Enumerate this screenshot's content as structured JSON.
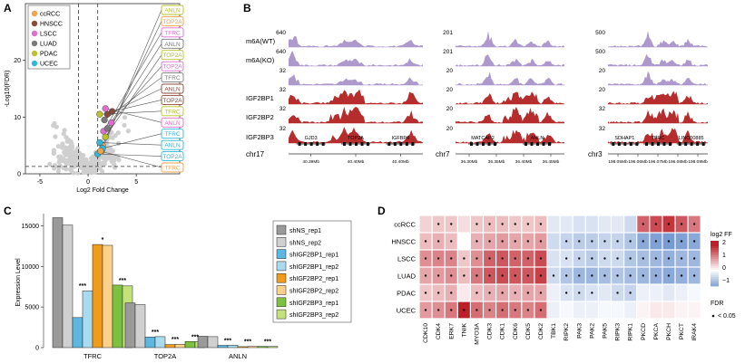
{
  "chart_data": [
    {
      "panel": "A",
      "type": "scatter",
      "title": "",
      "xlabel": "Log2 Fold Change",
      "ylabel": "-Log10(FDR)",
      "xlim": [
        -6.5,
        9.5
      ],
      "ylim": [
        0,
        30
      ],
      "xticks": [
        -5,
        0,
        5
      ],
      "yticks": [
        0,
        10,
        20
      ],
      "vlines": [
        -1,
        1
      ],
      "hline": 1.3,
      "legend": {
        "items": [
          {
            "name": "ccRCC",
            "color": "#f0a24d"
          },
          {
            "name": "HNSCC",
            "color": "#8b4a3a"
          },
          {
            "name": "LSCC",
            "color": "#dd6ecf"
          },
          {
            "name": "LUAD",
            "color": "#7a7a7a"
          },
          {
            "name": "PDAC",
            "color": "#b7c22e"
          },
          {
            "name": "UCEC",
            "color": "#32b7d9"
          }
        ]
      },
      "highlighted": [
        {
          "label": "ANLN",
          "cohort": "PDAC",
          "x": 1.4,
          "y": 4.0
        },
        {
          "label": "TOP2A",
          "cohort": "ccRCC",
          "x": 1.5,
          "y": 5.0
        },
        {
          "label": "TFRC",
          "cohort": "LSCC",
          "x": 1.6,
          "y": 7.5
        },
        {
          "label": "ANLN",
          "cohort": "LUAD",
          "x": 2.0,
          "y": 8.0
        },
        {
          "label": "TOP2A",
          "cohort": "PDAC",
          "x": 1.8,
          "y": 6.5
        },
        {
          "label": "TOP2A",
          "cohort": "LSCC",
          "x": 2.4,
          "y": 9.0
        },
        {
          "label": "TFRC",
          "cohort": "LUAD",
          "x": 1.7,
          "y": 9.5
        },
        {
          "label": "ANLN",
          "cohort": "HNSCC",
          "x": 2.0,
          "y": 10.5
        },
        {
          "label": "TOP2A",
          "cohort": "HNSCC",
          "x": 2.5,
          "y": 11.0
        },
        {
          "label": "TFRC",
          "cohort": "PDAC",
          "x": 1.2,
          "y": 10.5
        },
        {
          "label": "ANLN",
          "cohort": "LSCC",
          "x": 1.8,
          "y": 11.5
        },
        {
          "label": "TFRC",
          "cohort": "UCEC",
          "x": 1.5,
          "y": 4.5
        },
        {
          "label": "ANLN",
          "cohort": "UCEC",
          "x": 1.2,
          "y": 5.5
        },
        {
          "label": "TOP2A",
          "cohort": "UCEC",
          "x": 1.0,
          "y": 3.5
        },
        {
          "label": "TFRC",
          "cohort": "ccRCC",
          "x": 1.3,
          "y": 4.0
        }
      ]
    },
    {
      "panel": "B",
      "type": "area",
      "title": "",
      "tracks": [
        {
          "label": "m6A(WT)",
          "color": "#a993c9",
          "scales": [
            "640",
            "201",
            "500"
          ]
        },
        {
          "label": "m6A(KO)",
          "color": "#a993c9",
          "scales": [
            "640",
            "201",
            "500"
          ]
        },
        {
          "label": "",
          "color": "#a993c9",
          "scales": [
            "32",
            "20",
            "20"
          ]
        },
        {
          "label": "IGF2BP1",
          "color": "#b22222",
          "scales": [
            "32",
            "20",
            "20"
          ]
        },
        {
          "label": "IGF2BP2",
          "color": "#b22222",
          "scales": [
            "32",
            "20",
            "32"
          ]
        },
        {
          "label": "IGF2BP3",
          "color": "#b22222",
          "scales": [
            "32",
            "20",
            "32"
          ]
        }
      ],
      "loci": [
        {
          "chrom": "chr17",
          "genes": [
            "GJD3",
            "TOP2A",
            "IGFBP4"
          ],
          "ticks": [
            "40.39Mb",
            "40.40Mb",
            "40.40Mb"
          ]
        },
        {
          "chrom": "chr7",
          "genes": [
            "MATCAP2",
            "ANLN"
          ],
          "ticks": [
            "36.30Mb",
            "36.35Mb",
            "36.40Mb",
            "36.45Mb"
          ]
        },
        {
          "chrom": "chr3",
          "genes": [
            "SDHAP1",
            "TFRC",
            "LINC00885"
          ],
          "ticks": [
            "196.05Mb",
            "196.06Mb",
            "196.07Mb",
            "196.08Mb",
            "196.09Mb"
          ]
        }
      ]
    },
    {
      "panel": "C",
      "type": "bar",
      "title": "",
      "xlabel": "",
      "ylabel": "Expression Level",
      "ylim": [
        0,
        16500
      ],
      "yticks": [
        0,
        5000,
        10000,
        15000
      ],
      "categories": [
        "TFRC",
        "TOP2A",
        "ANLN"
      ],
      "series": [
        {
          "name": "shNS_rep1",
          "color": "#9a9a9a",
          "values": [
            16000,
            5500,
            1400
          ]
        },
        {
          "name": "shNS_rep2",
          "color": "#d0d0d0",
          "values": [
            15100,
            5300,
            1350
          ]
        },
        {
          "name": "shIGF2BP1_rep1",
          "color": "#5cb8e0",
          "values": [
            3700,
            1300,
            280
          ]
        },
        {
          "name": "shIGF2BP1_rep2",
          "color": "#aadaf0",
          "values": [
            7000,
            1350,
            300
          ]
        },
        {
          "name": "shIGF2BP2_rep1",
          "color": "#f09b1b",
          "values": [
            12700,
            380,
            120
          ]
        },
        {
          "name": "shIGF2BP2_rep2",
          "color": "#fad08a",
          "values": [
            12600,
            420,
            140
          ]
        },
        {
          "name": "shIGF2BP3_rep1",
          "color": "#7cc23e",
          "values": [
            7700,
            750,
            150
          ]
        },
        {
          "name": "shIGF2BP3_rep2",
          "color": "#c3e27a",
          "values": [
            7600,
            720,
            140
          ]
        }
      ],
      "significance": [
        {
          "category": "TFRC",
          "group": "shIGF2BP1",
          "label": "***"
        },
        {
          "category": "TFRC",
          "group": "shIGF2BP2",
          "label": "*"
        },
        {
          "category": "TFRC",
          "group": "shIGF2BP3",
          "label": "***"
        },
        {
          "category": "TOP2A",
          "group": "shIGF2BP1",
          "label": "***"
        },
        {
          "category": "TOP2A",
          "group": "shIGF2BP2",
          "label": "***"
        },
        {
          "category": "TOP2A",
          "group": "shIGF2BP3",
          "label": "***"
        },
        {
          "category": "ANLN",
          "group": "shIGF2BP1",
          "label": "***"
        },
        {
          "category": "ANLN",
          "group": "shIGF2BP2",
          "label": "***"
        },
        {
          "category": "ANLN",
          "group": "shIGF2BP3",
          "label": "***"
        }
      ]
    },
    {
      "panel": "D",
      "type": "heatmap",
      "title": "",
      "rows": [
        "ccRCC",
        "HNSCC",
        "LSCC",
        "LUAD",
        "PDAC",
        "UCEC"
      ],
      "columns": [
        "CDK10",
        "CDK4",
        "ERK7",
        "TNIK",
        "MYO3A",
        "CDK3",
        "CDK1",
        "CDK6",
        "CDK5",
        "CDK2",
        "TBK1",
        "RIPK2",
        "PAK3",
        "PAK2",
        "PAK5",
        "RIPK3",
        "RIPK1",
        "PKCD",
        "PKCA",
        "PKCH",
        "PKCT",
        "IRAK4"
      ],
      "values": [
        [
          0.4,
          0.5,
          0.5,
          0.3,
          0.5,
          0.6,
          0.6,
          0.5,
          0.5,
          0.6,
          -0.3,
          -0.3,
          -0.4,
          -0.4,
          -0.3,
          -0.3,
          -0.5,
          1.4,
          1.6,
          1.8,
          1.5,
          1.2
        ],
        [
          0.6,
          0.7,
          0.6,
          0.0,
          0.7,
          0.8,
          0.9,
          0.8,
          0.8,
          0.9,
          -0.5,
          -0.6,
          -0.7,
          -0.7,
          -0.6,
          -0.6,
          -0.8,
          -1.2,
          -1.3,
          -1.4,
          -1.3,
          -1.2
        ],
        [
          1.0,
          1.1,
          1.1,
          0.5,
          1.0,
          1.4,
          1.5,
          1.4,
          1.4,
          1.6,
          -0.4,
          -0.4,
          -0.6,
          -0.7,
          -0.5,
          -0.5,
          -0.8,
          -0.9,
          -1.0,
          -1.1,
          -1.0,
          -1.0
        ],
        [
          0.8,
          0.9,
          1.0,
          0.6,
          1.2,
          1.5,
          1.6,
          1.5,
          1.5,
          1.7,
          -0.5,
          -0.8,
          -1.0,
          -1.0,
          -0.9,
          -0.8,
          -0.9,
          -1.0,
          -1.1,
          -1.2,
          -1.1,
          -1.0
        ],
        [
          0.5,
          0.6,
          0.7,
          0.2,
          0.6,
          0.7,
          0.8,
          0.7,
          0.8,
          0.8,
          -0.2,
          -0.4,
          -0.5,
          -0.4,
          -0.3,
          -0.5,
          -0.6,
          -0.2,
          -0.2,
          -0.3,
          -0.2,
          -0.1
        ],
        [
          0.9,
          1.0,
          1.2,
          2.0,
          1.3,
          1.1,
          1.3,
          1.2,
          1.1,
          1.3,
          -0.2,
          -0.1,
          -0.2,
          -0.2,
          -0.1,
          -0.1,
          -0.2,
          0.1,
          0.2,
          0.2,
          0.1,
          0.1
        ]
      ],
      "significant": [
        [
          false,
          true,
          true,
          false,
          true,
          true,
          true,
          true,
          true,
          true,
          false,
          false,
          false,
          false,
          false,
          false,
          false,
          true,
          true,
          true,
          true,
          true
        ],
        [
          true,
          true,
          true,
          false,
          true,
          true,
          true,
          true,
          true,
          true,
          false,
          true,
          true,
          true,
          true,
          true,
          true,
          true,
          true,
          true,
          true,
          true
        ],
        [
          true,
          true,
          true,
          true,
          true,
          true,
          true,
          true,
          true,
          true,
          false,
          true,
          true,
          true,
          true,
          true,
          true,
          true,
          true,
          true,
          true,
          true
        ],
        [
          true,
          true,
          true,
          true,
          true,
          true,
          true,
          true,
          true,
          true,
          true,
          true,
          true,
          true,
          true,
          true,
          true,
          true,
          true,
          true,
          true,
          true
        ],
        [
          true,
          true,
          true,
          false,
          true,
          true,
          true,
          true,
          true,
          true,
          false,
          true,
          true,
          true,
          false,
          true,
          true,
          false,
          false,
          false,
          false,
          false
        ],
        [
          true,
          true,
          true,
          true,
          true,
          true,
          true,
          true,
          true,
          true,
          false,
          false,
          false,
          false,
          false,
          false,
          false,
          false,
          false,
          false,
          false,
          false
        ]
      ],
      "colorbar": {
        "title": "log2 FF",
        "ticks": [
          "2",
          "1",
          "0",
          "−1"
        ]
      },
      "fdr_legend": {
        "title": "FDR",
        "label": "< 0.05"
      }
    }
  ],
  "panel_letters": [
    "A",
    "B",
    "C",
    "D"
  ]
}
